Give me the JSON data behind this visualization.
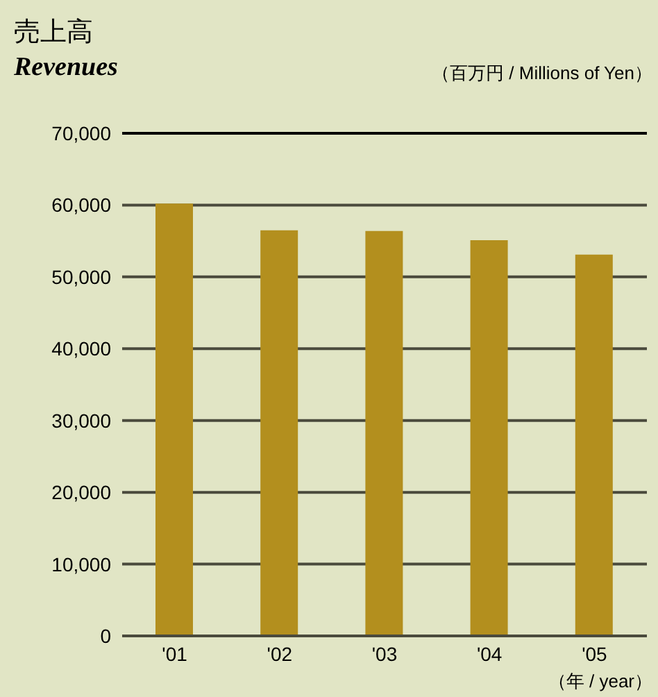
{
  "chart_data": {
    "type": "bar",
    "title": "売上高",
    "subtitle": "Revenues",
    "ylabel": "（百万円 / Millions of Yen）",
    "xlabel": "（年 / year）",
    "categories": [
      "'01",
      "'02",
      "'03",
      "'04",
      "'05"
    ],
    "values": [
      60200,
      56500,
      56400,
      55100,
      53100
    ],
    "color": "#b38f1e",
    "ylim": [
      0,
      70000
    ],
    "yticks": [
      0,
      {
        "value": 10000,
        "label": "10,000"
      },
      {
        "value": 20000,
        "label": "20,000"
      },
      {
        "value": 30000,
        "label": "30,000"
      },
      {
        "value": 40000,
        "label": "40,000"
      },
      {
        "value": 50000,
        "label": "50,000"
      },
      {
        "value": 60000,
        "label": "60,000"
      },
      {
        "value": 70000,
        "label": "70,000"
      }
    ],
    "grid": "y"
  }
}
